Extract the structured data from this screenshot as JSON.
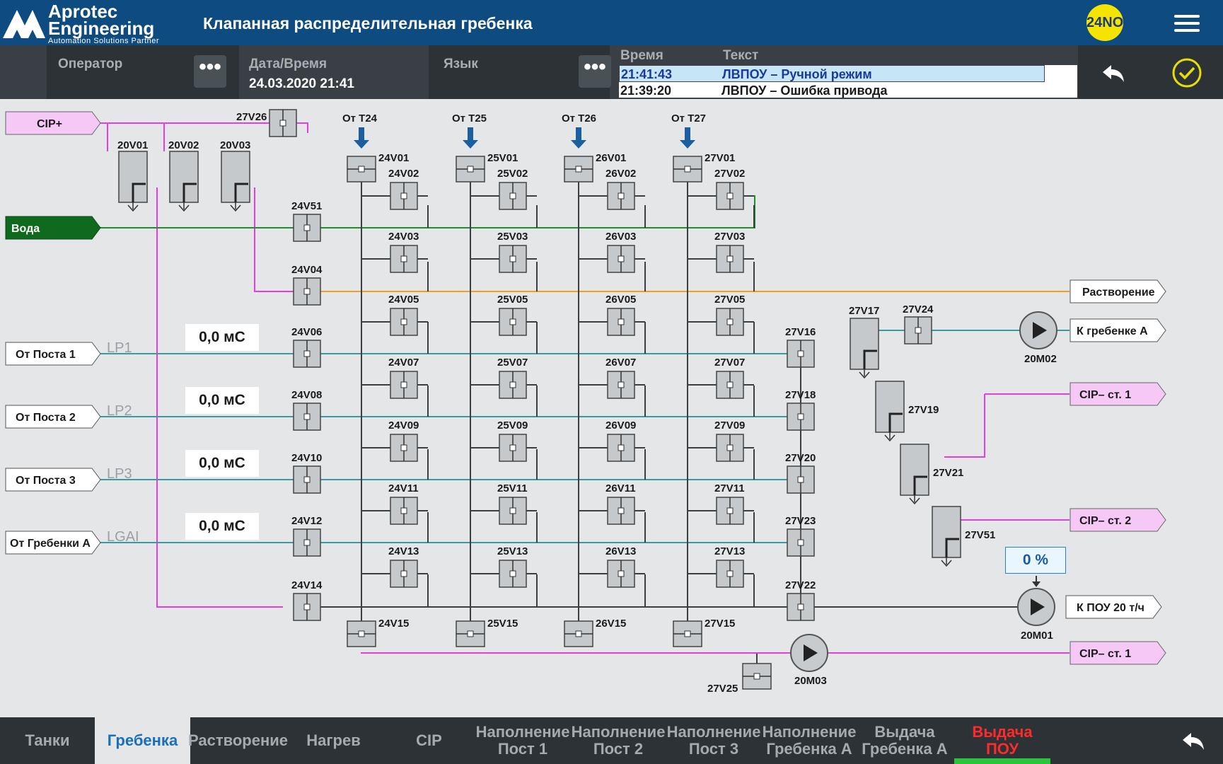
{
  "header": {
    "logo_line1": "Aprotec",
    "logo_line2": "Engineering",
    "logo_tagline": "Automation Solutions Partner",
    "title": "Клапанная распределительная гребенка",
    "user_badge": "24NO"
  },
  "infobar": {
    "operator_label": "Оператор",
    "datetime_label": "Дата/Время",
    "datetime_value": "24.03.2020 21:41",
    "language_label": "Язык",
    "more_label": "•••",
    "alarm_time_header": "Время",
    "alarm_text_header": "Текст",
    "alarms": [
      {
        "time": "21:41:43",
        "text": "ЛВПОУ – Ручной режим"
      },
      {
        "time": "21:39:20",
        "text": "ЛВПОУ – Ошибка привода"
      }
    ]
  },
  "sources": {
    "cip_plus": "CIP+",
    "water": "Вода",
    "post1": "От Поста 1",
    "post2": "От Поста 2",
    "post3": "От Поста 3",
    "manifold_a": "От Гребенки А",
    "t24": "От Т24",
    "t25": "От Т25",
    "t26": "От Т26",
    "t27": "От Т27"
  },
  "destinations": {
    "dissolving": "Растворение",
    "to_manifold_a": "К гребенке А",
    "cip_st1_a": "CIP– ст. 1",
    "cip_st2": "CIP– ст. 2",
    "to_pou": "К ПОУ 20 т/ч",
    "cip_st1_b": "CIP– ст. 1"
  },
  "line_labels": {
    "lp1": "LP1",
    "lp2": "LP2",
    "lp3": "LP3",
    "lgai": "LGAI"
  },
  "flow_values": {
    "lp1": "0,0 мС",
    "lp2": "0,0 мС",
    "lp3": "0,0 мС",
    "lgai": "0,0 мС"
  },
  "pump_level": {
    "value": "0 %"
  },
  "valves": {
    "v27v26": "27V26",
    "v20v01": "20V01",
    "v20v02": "20V02",
    "v20v03": "20V03",
    "v24v51": "24V51",
    "v24v04": "24V04",
    "v24v06": "24V06",
    "v24v08": "24V08",
    "v24v10": "24V10",
    "v24v12": "24V12",
    "v24v14": "24V14",
    "v24v01": "24V01",
    "v25v01": "25V01",
    "v26v01": "26V01",
    "v27v01": "27V01",
    "v24v02": "24V02",
    "v25v02": "25V02",
    "v26v02": "26V02",
    "v27v02": "27V02",
    "v24v03": "24V03",
    "v25v03": "25V03",
    "v26v03": "26V03",
    "v27v03": "27V03",
    "v24v05": "24V05",
    "v25v05": "25V05",
    "v26v05": "26V05",
    "v27v05": "27V05",
    "v24v07": "24V07",
    "v25v07": "25V07",
    "v26v07": "26V07",
    "v27v07": "27V07",
    "v24v09": "24V09",
    "v25v09": "25V09",
    "v26v09": "26V09",
    "v27v09": "27V09",
    "v24v11": "24V11",
    "v25v11": "25V11",
    "v26v11": "26V11",
    "v27v11": "27V11",
    "v24v13": "24V13",
    "v25v13": "25V13",
    "v26v13": "26V13",
    "v27v13": "27V13",
    "v24v15": "24V15",
    "v25v15": "25V15",
    "v26v15": "26V15",
    "v27v15": "27V15",
    "v27v16": "27V16",
    "v27v18": "27V18",
    "v27v20": "27V20",
    "v27v23": "27V23",
    "v27v22": "27V22",
    "v27v17": "27V17",
    "v27v24": "27V24",
    "v27v19": "27V19",
    "v27v21": "27V21",
    "v27v51": "27V51",
    "v27v25": "27V25"
  },
  "pumps": {
    "p20m02": "20M02",
    "p20m01": "20M01",
    "p20m03": "20M03"
  },
  "tabs": [
    {
      "label": "Танки"
    },
    {
      "label": "Гребенка"
    },
    {
      "label": "Растворение"
    },
    {
      "label": "Нагрев"
    },
    {
      "label": "CIP"
    },
    {
      "label": "Наполнение Пост 1"
    },
    {
      "label": "Наполнение Пост 2"
    },
    {
      "label": "Наполнение Пост 3"
    },
    {
      "label": "Наполнение Гребенка А"
    },
    {
      "label": "Выдача Гребенка А"
    },
    {
      "label": "Выдача ПОУ"
    }
  ],
  "colors": {
    "header_bg": "#0d4b80",
    "water_line": "#1f8f2a",
    "cip_line": "#e040e0",
    "dissolve_line": "#f0a020",
    "process_line": "#3a9aa0",
    "alert_tab": "#ff2a2a",
    "active_tab": "#1b6fb8"
  }
}
